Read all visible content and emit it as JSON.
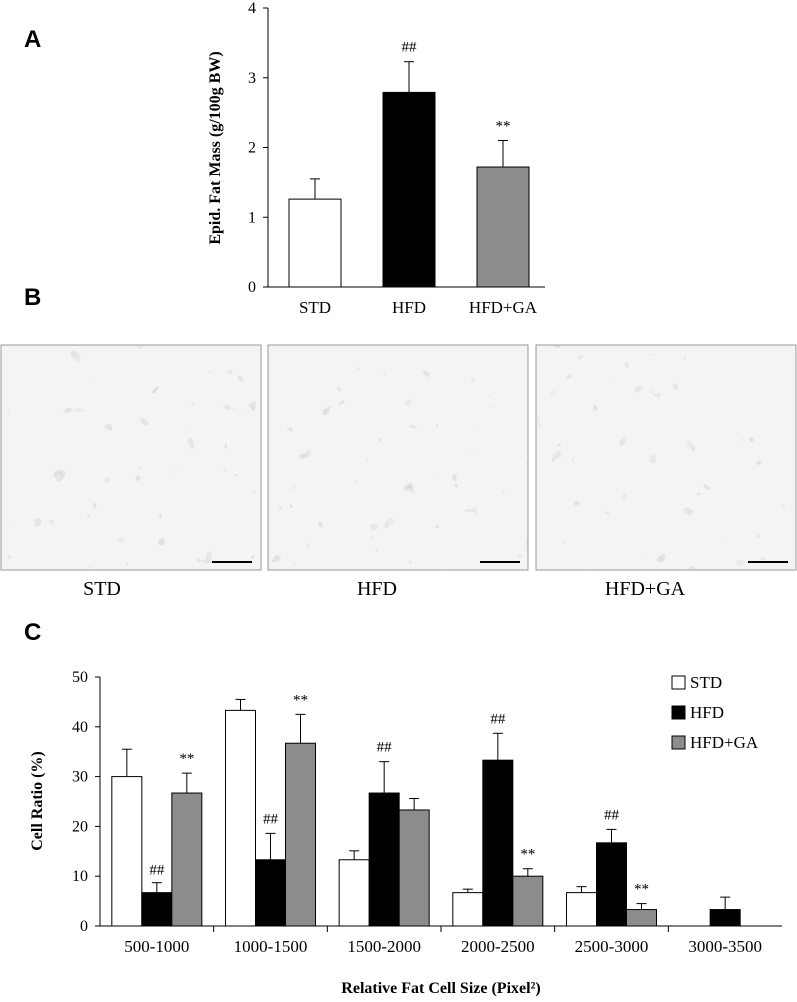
{
  "panels": {
    "a": {
      "letter": "A",
      "chart_data": {
        "type": "bar",
        "categories": [
          "STD",
          "HFD",
          "HFD+GA"
        ],
        "values": [
          1.26,
          2.79,
          1.72
        ],
        "errors": [
          0.29,
          0.44,
          0.38
        ],
        "annotations": [
          "",
          "##",
          "**"
        ],
        "colors": [
          "#ffffff",
          "#000000",
          "#8c8c8c"
        ],
        "ylabel": "Epid. Fat Mass (g/100g BW)",
        "xlabel": "",
        "ylim": [
          0,
          4
        ],
        "yticks": [
          "0",
          "1",
          "2",
          "3",
          "4"
        ],
        "grid": false
      }
    },
    "b": {
      "letter": "B",
      "images": [
        {
          "caption": "STD"
        },
        {
          "caption": "HFD"
        },
        {
          "caption": "HFD+GA"
        }
      ]
    },
    "c": {
      "letter": "C",
      "chart_data": {
        "type": "bar",
        "categories": [
          "500-1000",
          "1000-1500",
          "1500-2000",
          "2000-2500",
          "2500-3000",
          "3000-3500"
        ],
        "series": [
          {
            "name": "STD",
            "color": "#ffffff",
            "values": [
              30,
              43.3,
              13.3,
              6.7,
              6.7,
              0
            ],
            "errors": [
              5.5,
              2.2,
              1.8,
              0.7,
              1.2,
              0
            ],
            "annotations": [
              "",
              "",
              "",
              "",
              "",
              ""
            ]
          },
          {
            "name": "HFD",
            "color": "#000000",
            "values": [
              6.7,
              13.3,
              26.7,
              33.3,
              16.7,
              3.3
            ],
            "errors": [
              2.0,
              5.3,
              6.3,
              5.4,
              2.7,
              2.5
            ],
            "annotations": [
              "##",
              "##",
              "##",
              "##",
              "##",
              ""
            ]
          },
          {
            "name": "HFD+GA",
            "color": "#8c8c8c",
            "values": [
              26.7,
              36.7,
              23.3,
              10.0,
              3.3,
              0
            ],
            "errors": [
              4.0,
              5.8,
              2.3,
              1.5,
              1.2,
              0
            ],
            "annotations": [
              "**",
              "**",
              "",
              "**",
              "**",
              ""
            ]
          }
        ],
        "ylabel": "Cell Ratio (%)",
        "xlabel": "Relative Fat Cell Size (Pixel²)",
        "ylim": [
          0,
          50
        ],
        "yticks": [
          "0",
          "10",
          "20",
          "30",
          "40",
          "50"
        ],
        "legend": "top-right",
        "grid": false
      }
    }
  }
}
